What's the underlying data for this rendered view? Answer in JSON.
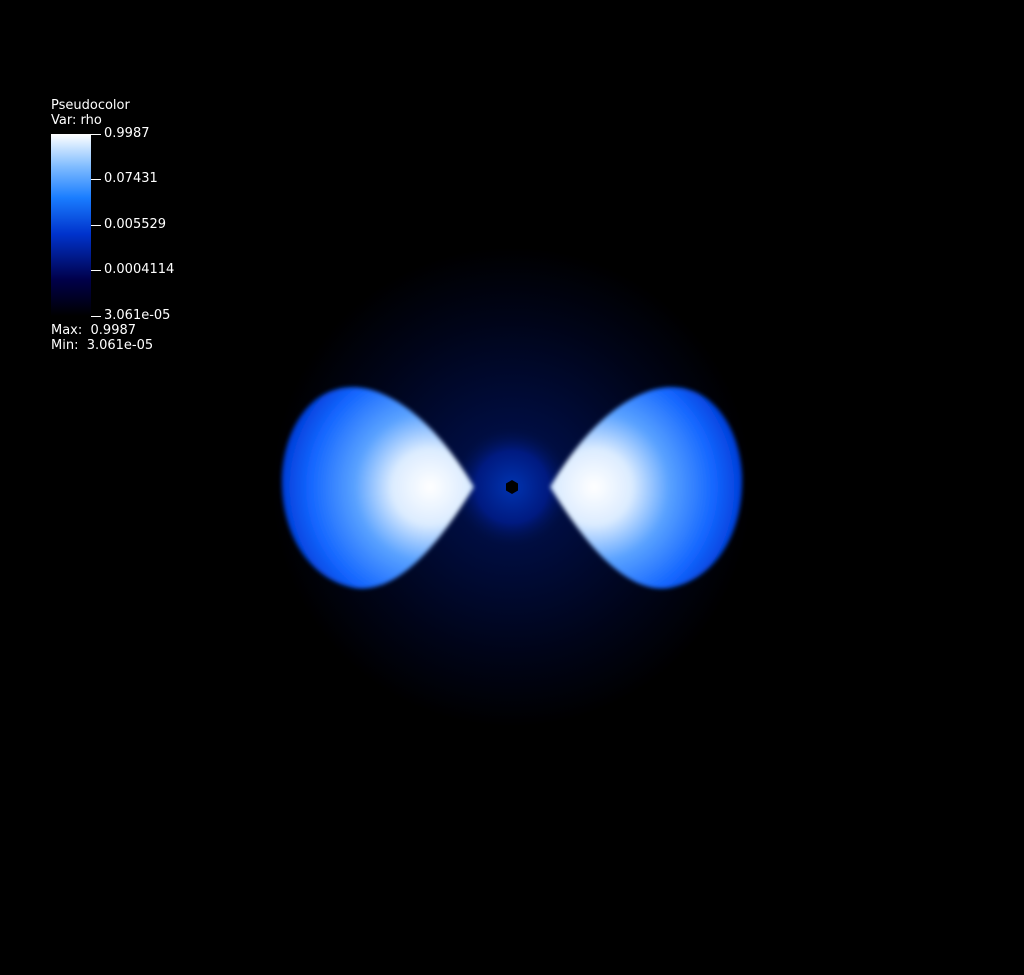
{
  "legend": {
    "plot_type": "Pseudocolor",
    "variable": "Var: rho",
    "max_label": "Max:",
    "max_value": "0.9987",
    "min_label": "Min:",
    "min_value": "3.061e-05"
  },
  "chart_data": {
    "type": "heatmap",
    "title": "",
    "variable": "rho",
    "scale": "log",
    "range": [
      3.061e-05,
      0.9987
    ],
    "colorbar_ticks": [
      "0.9987",
      "0.07431",
      "0.005529",
      "0.0004114",
      "3.061e-05"
    ],
    "colormap": [
      "#000000",
      "#00004a",
      "#0033cc",
      "#1a7dff",
      "#7fbcff",
      "#ffffff"
    ],
    "background": "#000000"
  }
}
